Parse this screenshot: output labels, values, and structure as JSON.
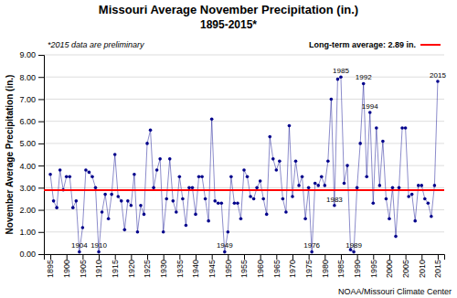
{
  "chart_data": {
    "type": "line",
    "title": "Missouri Average November Precipitation (in.)",
    "subtitle": "1895-2015*",
    "y_label": "November Average Precipitation (in.)",
    "note": "*2015 data are preliminary",
    "source": "NOAA/Missouri Climate Center",
    "color": "#00008B",
    "grid": true,
    "xlim": [
      1893,
      2017
    ],
    "xticks": [
      1895,
      1900,
      1905,
      1910,
      1915,
      1920,
      1925,
      1930,
      1935,
      1940,
      1945,
      1950,
      1955,
      1960,
      1965,
      1970,
      1975,
      1980,
      1985,
      1990,
      1995,
      2000,
      2005,
      2010,
      2015
    ],
    "ylim": [
      0.0,
      9.0
    ],
    "yticks": [
      {
        "value": 0.0,
        "label": "0.00"
      },
      {
        "value": 1.0,
        "label": "1.00"
      },
      {
        "value": 2.0,
        "label": "2.00"
      },
      {
        "value": 3.0,
        "label": "3.00"
      },
      {
        "value": 4.0,
        "label": "4.00"
      },
      {
        "value": 5.0,
        "label": "5.00"
      },
      {
        "value": 6.0,
        "label": "6.00"
      },
      {
        "value": 7.0,
        "label": "7.00"
      },
      {
        "value": 8.0,
        "label": "8.00"
      },
      {
        "value": 9.0,
        "label": "9.00"
      }
    ],
    "x": [
      1895,
      1896,
      1897,
      1898,
      1899,
      1900,
      1901,
      1902,
      1903,
      1904,
      1905,
      1906,
      1907,
      1908,
      1909,
      1910,
      1911,
      1912,
      1913,
      1914,
      1915,
      1916,
      1917,
      1918,
      1919,
      1920,
      1921,
      1922,
      1923,
      1924,
      1925,
      1926,
      1927,
      1928,
      1929,
      1930,
      1931,
      1932,
      1933,
      1934,
      1935,
      1936,
      1937,
      1938,
      1939,
      1940,
      1941,
      1942,
      1943,
      1944,
      1945,
      1946,
      1947,
      1948,
      1949,
      1950,
      1951,
      1952,
      1953,
      1954,
      1955,
      1956,
      1957,
      1958,
      1959,
      1960,
      1961,
      1962,
      1963,
      1964,
      1965,
      1966,
      1967,
      1968,
      1969,
      1970,
      1971,
      1972,
      1973,
      1974,
      1975,
      1976,
      1977,
      1978,
      1979,
      1980,
      1981,
      1982,
      1983,
      1984,
      1985,
      1986,
      1987,
      1988,
      1989,
      1990,
      1991,
      1992,
      1993,
      1994,
      1995,
      1996,
      1997,
      1998,
      1999,
      2000,
      2001,
      2002,
      2003,
      2004,
      2005,
      2006,
      2007,
      2008,
      2009,
      2010,
      2011,
      2012,
      2013,
      2014,
      2015
    ],
    "values": [
      3.6,
      2.4,
      2.1,
      3.8,
      2.9,
      3.5,
      3.5,
      2.1,
      2.4,
      0.1,
      1.2,
      3.8,
      3.7,
      3.5,
      3.0,
      0.1,
      1.9,
      2.7,
      1.6,
      2.7,
      4.5,
      2.6,
      2.4,
      1.1,
      2.4,
      2.2,
      3.6,
      1.0,
      2.2,
      1.8,
      5.0,
      5.6,
      3.0,
      3.8,
      4.3,
      1.0,
      2.5,
      4.3,
      2.4,
      1.9,
      3.5,
      2.5,
      1.3,
      3.0,
      3.0,
      1.8,
      3.5,
      3.5,
      2.5,
      1.5,
      6.1,
      2.4,
      2.3,
      2.3,
      0.1,
      1.0,
      3.5,
      2.3,
      2.3,
      1.6,
      3.8,
      3.5,
      2.6,
      2.5,
      3.0,
      3.3,
      2.5,
      1.8,
      5.3,
      4.3,
      3.8,
      4.2,
      2.5,
      1.9,
      5.8,
      2.6,
      4.2,
      3.1,
      3.5,
      1.6,
      3.0,
      0.1,
      3.2,
      3.1,
      3.5,
      3.1,
      4.2,
      7.0,
      2.2,
      7.9,
      8.0,
      3.2,
      4.0,
      0.2,
      0.1,
      3.0,
      5.0,
      7.7,
      3.5,
      6.4,
      2.3,
      5.7,
      3.1,
      5.1,
      2.5,
      1.6,
      3.0,
      0.8,
      3.0,
      5.7,
      5.7,
      2.6,
      2.7,
      1.5,
      3.1,
      3.1,
      2.5,
      2.3,
      1.7,
      3.1,
      7.8
    ],
    "average": {
      "value": 2.89,
      "label": "Long-term average: 2.89 in.",
      "color": "#FF0000"
    },
    "annotations": [
      {
        "text": "1904",
        "x": 1904,
        "position": "bottom"
      },
      {
        "text": "1910",
        "x": 1910,
        "position": "bottom"
      },
      {
        "text": "1949",
        "x": 1949,
        "position": "bottom"
      },
      {
        "text": "1976",
        "x": 1976,
        "position": "bottom"
      },
      {
        "text": "1989",
        "x": 1989,
        "position": "bottom"
      },
      {
        "text": "1983",
        "x": 1983,
        "position": "top"
      },
      {
        "text": "1985",
        "x": 1985,
        "position": "top"
      },
      {
        "text": "1992",
        "x": 1992,
        "position": "top"
      },
      {
        "text": "1994",
        "x": 1994,
        "position": "top"
      },
      {
        "text": "2015",
        "x": 2015,
        "position": "top"
      }
    ]
  }
}
